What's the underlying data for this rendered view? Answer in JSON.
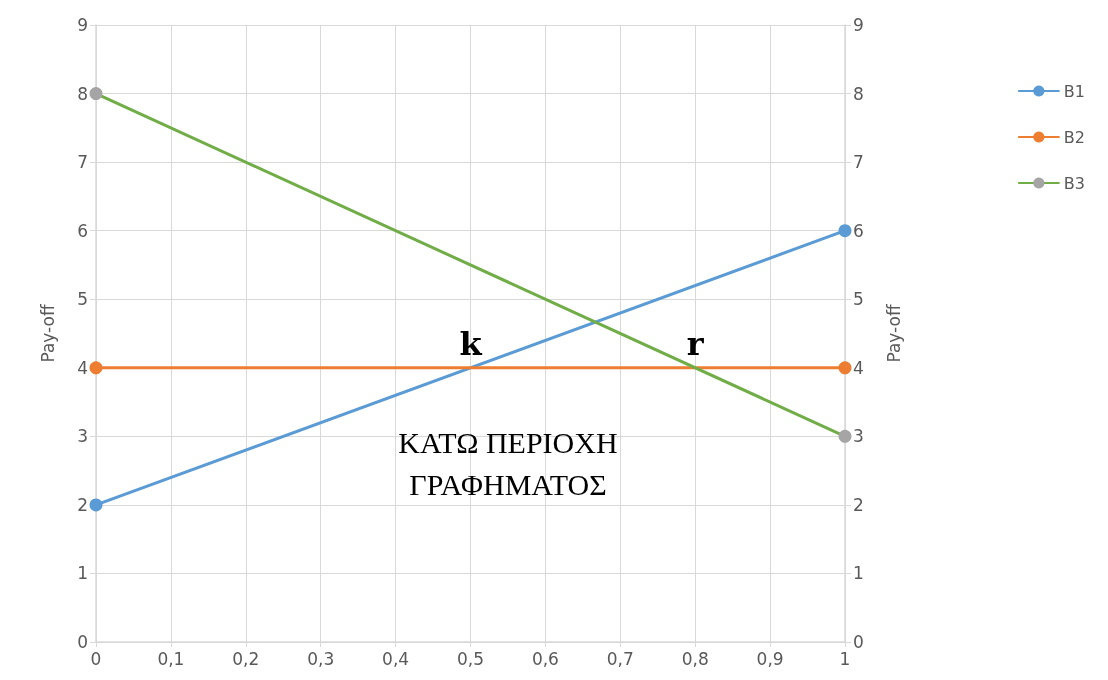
{
  "chart_data": {
    "type": "line",
    "ylabel": "Pay-off",
    "y2label": "Pay-off",
    "xlim": [
      0,
      1
    ],
    "xticks": [
      0,
      {
        "value": 0.1,
        "label": "0,1"
      },
      {
        "value": 0.2,
        "label": "0,2"
      },
      {
        "value": 0.3,
        "label": "0,3"
      },
      {
        "value": 0.4,
        "label": "0,4"
      },
      {
        "value": 0.5,
        "label": "0,5"
      },
      {
        "value": 0.6,
        "label": "0,6"
      },
      {
        "value": 0.7,
        "label": "0,7"
      },
      {
        "value": 0.8,
        "label": "0,8"
      },
      {
        "value": 0.9,
        "label": "0,9"
      },
      1
    ],
    "ylim": [
      0,
      9
    ],
    "yticks": [
      0,
      1,
      2,
      3,
      4,
      5,
      6,
      7,
      8,
      9
    ],
    "y2lim": [
      0,
      9
    ],
    "y2ticks": [
      0,
      1,
      2,
      3,
      4,
      5,
      6,
      7,
      8,
      9
    ],
    "x": [
      0,
      1
    ],
    "series": [
      {
        "name": "B1",
        "color": "#5b9bd5",
        "values": [
          2,
          6
        ]
      },
      {
        "name": "B2",
        "color": "#ed7d31",
        "values": [
          4,
          4
        ]
      },
      {
        "name": "B3",
        "color": "#70ad47",
        "colors": [
          "#a5a5a5",
          "#a5a5a5"
        ],
        "values": [
          8,
          3
        ]
      }
    ],
    "annotations": [
      {
        "text": "k",
        "x": 0.5,
        "y": 4
      },
      {
        "text": "r",
        "x": 0.8,
        "y": 4
      },
      "ΚΑΤΩ ΠΕΡΙΟΧΗ ΓΡΑΦΗΜΑΤΟΣ"
    ],
    "grid": true,
    "legend": "right",
    "marker": "circle",
    "line_style": "solid"
  }
}
